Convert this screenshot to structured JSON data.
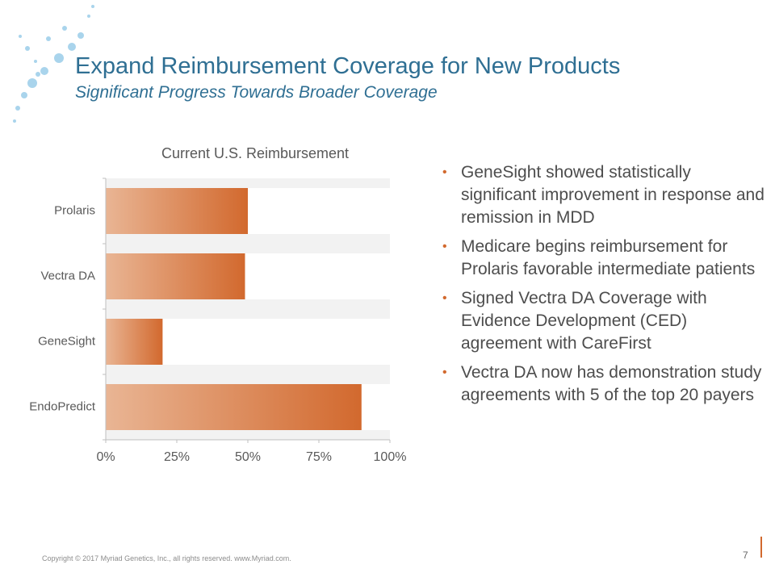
{
  "header": {
    "title": "Expand Reimbursement Coverage for New Products",
    "subtitle": "Significant Progress Towards Broader Coverage"
  },
  "chart_data": {
    "type": "hbar",
    "title": "Current U.S. Reimbursement",
    "categories": [
      "Prolaris",
      "Vectra DA",
      "GeneSight",
      "EndoPredict"
    ],
    "values": [
      50,
      49,
      20,
      90
    ],
    "color": "#d2692e",
    "xlim": [
      0,
      100
    ],
    "xticks": [
      {
        "value": 0,
        "label": "0%"
      },
      {
        "value": 25,
        "label": "25%"
      },
      {
        "value": 50,
        "label": "50%"
      },
      {
        "value": 75,
        "label": "75%"
      },
      {
        "value": 100,
        "label": "100%"
      }
    ]
  },
  "bullets": [
    "GeneSight showed statistically significant improvement in response and remission in MDD",
    "Medicare begins reimbursement for Prolaris favorable intermediate patients",
    "Signed Vectra DA Coverage with Evidence Development (CED) agreement with CareFirst",
    "Vectra DA now has demonstration study agreements with 5 of the top 20 payers"
  ],
  "footer": "Copyright © 2017 Myriad Genetics, Inc., all rights reserved.  www.Myriad.com.",
  "page_number": "7"
}
